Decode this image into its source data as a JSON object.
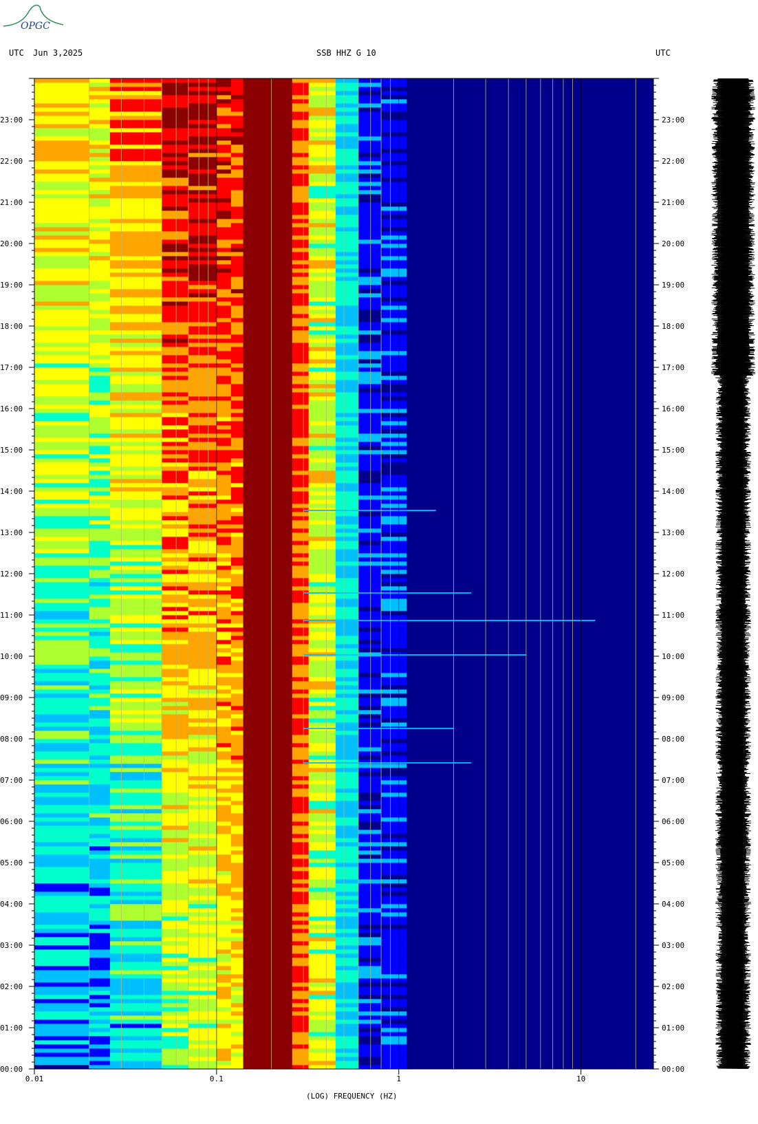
{
  "header": {
    "left_tz": "UTC",
    "date": "Jun 3,2025",
    "station": "SSB HHZ G 10",
    "right_tz": "UTC"
  },
  "logo": {
    "text": "OPGC"
  },
  "chart_data": {
    "type": "heatmap",
    "title": "SSB HHZ G 10",
    "xlabel": "(LOG) FREQUENCY (HZ)",
    "x_scale": "log",
    "xlim": [
      0.01,
      25
    ],
    "x_ticks": [
      "0.01",
      "0.1",
      "1",
      "10"
    ],
    "y_ticks": [
      "00:00",
      "01:00",
      "02:00",
      "03:00",
      "04:00",
      "05:00",
      "06:00",
      "07:00",
      "08:00",
      "09:00",
      "10:00",
      "11:00",
      "12:00",
      "13:00",
      "14:00",
      "15:00",
      "16:00",
      "17:00",
      "18:00",
      "19:00",
      "20:00",
      "21:00",
      "22:00",
      "23:00"
    ],
    "y_range_hours": [
      0,
      24
    ],
    "colormap": [
      "#00008b",
      "#0000ff",
      "#00bfff",
      "#00ffcc",
      "#adff2f",
      "#ffff00",
      "#ffa500",
      "#ff0000",
      "#8b0000"
    ],
    "events": [
      {
        "time": "11:32",
        "f_max_hz": 2.5
      },
      {
        "time": "10:52",
        "f_max_hz": 12
      },
      {
        "time": "10:02",
        "f_max_hz": 5
      },
      {
        "time": "08:15",
        "f_max_hz": 2
      },
      {
        "time": "07:25",
        "f_max_hz": 2.5
      },
      {
        "time": "13:32",
        "f_max_hz": 1.6
      }
    ]
  }
}
